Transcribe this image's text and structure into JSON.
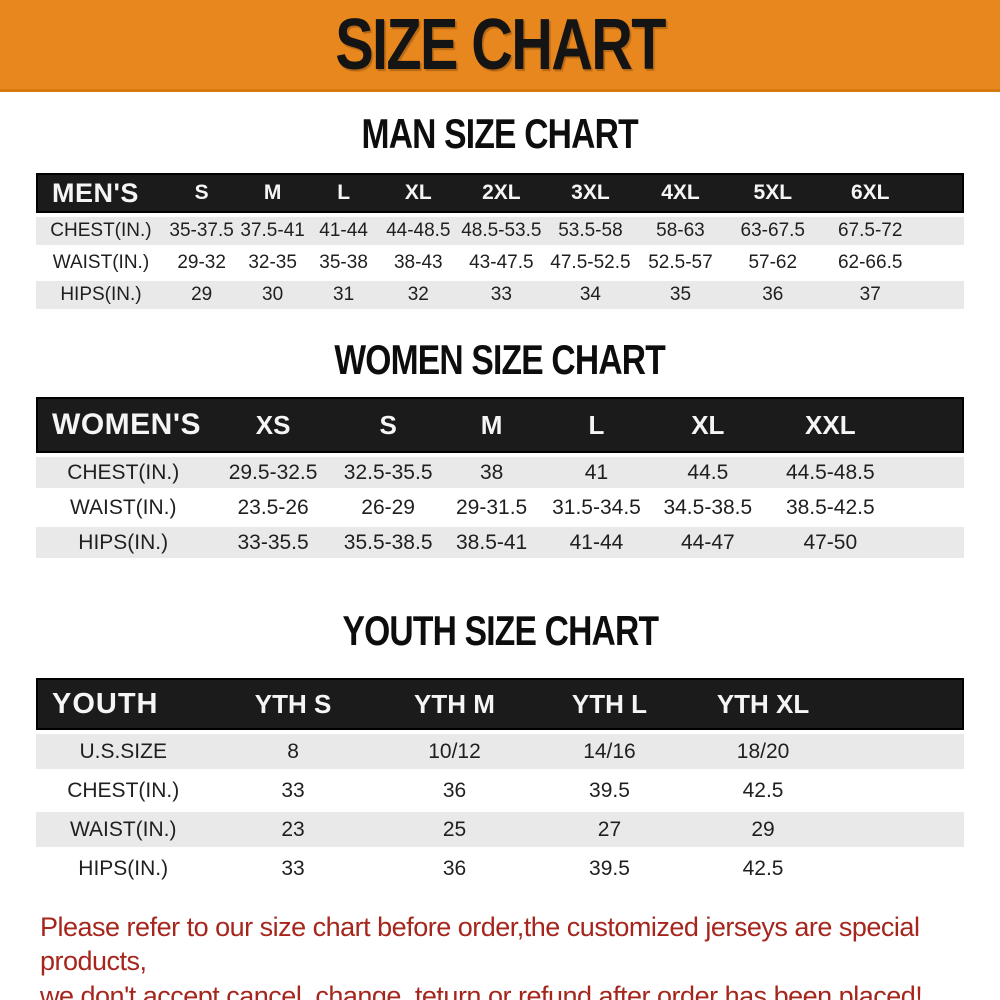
{
  "banner": {
    "title": "SIZE CHART"
  },
  "sections": [
    {
      "title": "MAN SIZE CHART",
      "header_label": "MEN'S",
      "columns": [
        "S",
        "M",
        "L",
        "XL",
        "2XL",
        "3XL",
        "4XL",
        "5XL",
        "6XL"
      ],
      "rows": [
        {
          "label": "CHEST(IN.)",
          "values": [
            "35-37.5",
            "37.5-41",
            "41-44",
            "44-48.5",
            "48.5-53.5",
            "53.5-58",
            "58-63",
            "63-67.5",
            "67.5-72"
          ]
        },
        {
          "label": "WAIST(IN.)",
          "values": [
            "29-32",
            "32-35",
            "35-38",
            "38-43",
            "43-47.5",
            "47.5-52.5",
            "52.5-57",
            "57-62",
            "62-66.5"
          ]
        },
        {
          "label": "HIPS(IN.)",
          "values": [
            "29",
            "30",
            "31",
            "32",
            "33",
            "34",
            "35",
            "36",
            "37"
          ]
        }
      ]
    },
    {
      "title": "WOMEN SIZE CHART",
      "header_label": "WOMEN'S",
      "columns": [
        "XS",
        "S",
        "M",
        "L",
        "XL",
        "XXL"
      ],
      "rows": [
        {
          "label": "CHEST(IN.)",
          "values": [
            "29.5-32.5",
            "32.5-35.5",
            "38",
            "41",
            "44.5",
            "44.5-48.5"
          ]
        },
        {
          "label": "WAIST(IN.)",
          "values": [
            "23.5-26",
            "26-29",
            "29-31.5",
            "31.5-34.5",
            "34.5-38.5",
            "38.5-42.5"
          ]
        },
        {
          "label": "HIPS(IN.)",
          "values": [
            "33-35.5",
            "35.5-38.5",
            "38.5-41",
            "41-44",
            "44-47",
            "47-50"
          ]
        }
      ]
    },
    {
      "title": "YOUTH SIZE CHART",
      "header_label": "YOUTH",
      "columns": [
        "YTH S",
        "YTH M",
        "YTH L",
        "YTH XL"
      ],
      "rows": [
        {
          "label": "U.S.SIZE",
          "values": [
            "8",
            "10/12",
            "14/16",
            "18/20"
          ]
        },
        {
          "label": "CHEST(IN.)",
          "values": [
            "33",
            "36",
            "39.5",
            "42.5"
          ]
        },
        {
          "label": "WAIST(IN.)",
          "values": [
            "23",
            "25",
            "27",
            "29"
          ]
        },
        {
          "label": "HIPS(IN.)",
          "values": [
            "33",
            "36",
            "39.5",
            "42.5"
          ]
        }
      ]
    }
  ],
  "disclaimer": {
    "line1": "Please refer to our size chart before order,the customized jerseys are special products,",
    "line2": "we don't accept cancel, change, teturn or refund after order has been placed!"
  },
  "colors": {
    "banner_bg": "#E8871E",
    "table_header_bg": "#1B1B1B",
    "shaded_row_bg": "#E9E9E9",
    "disclaimer_text": "#A6261D"
  }
}
